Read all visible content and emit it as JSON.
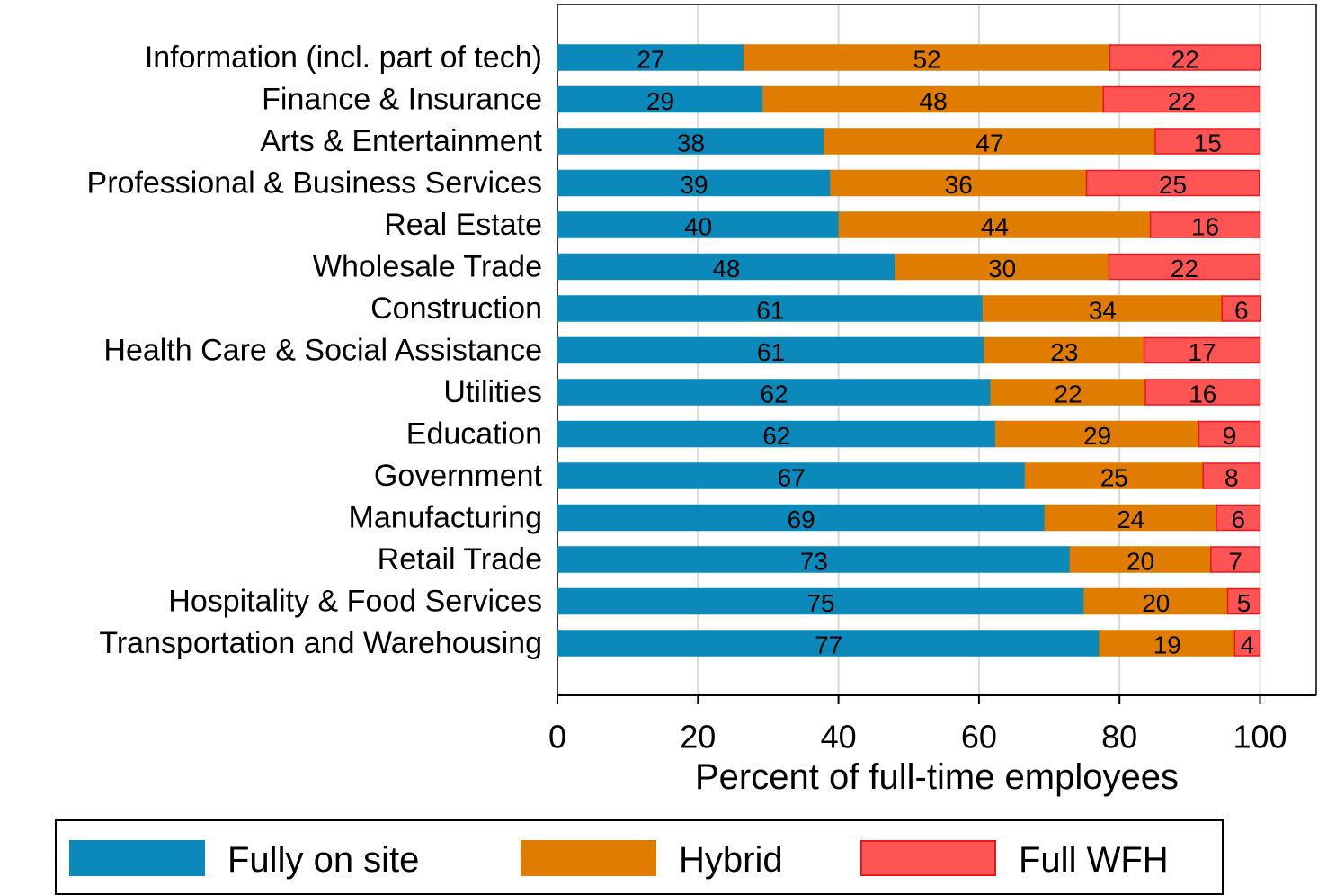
{
  "chart_data": {
    "type": "stacked_barh",
    "categories": [
      "Information (incl. part of tech)",
      "Finance & Insurance",
      "Arts & Entertainment",
      "Professional & Business Services",
      "Real Estate",
      "Wholesale Trade",
      "Construction",
      "Health Care & Social Assistance",
      "Utilities",
      "Education",
      "Government",
      "Manufacturing",
      "Retail Trade",
      "Hospitality & Food Services",
      "Transportation and Warehousing"
    ],
    "series": [
      {
        "name": "Fully on site",
        "color": "#0b89bb",
        "edge": "#0b89bb",
        "values": [
          26.6,
          29.3,
          38.0,
          38.9,
          40.1,
          48.1,
          60.6,
          60.8,
          61.7,
          62.4,
          66.6,
          69.4,
          73.0,
          75.0,
          77.2
        ],
        "value_labels": [
          "27",
          "29",
          "38",
          "39",
          "40",
          "48",
          "61",
          "61",
          "62",
          "62",
          "67",
          "69",
          "73",
          "75",
          "77"
        ]
      },
      {
        "name": "Hybrid",
        "color": "#e07c00",
        "edge": "#e07c00",
        "values": [
          52.0,
          48.4,
          47.1,
          36.4,
          44.3,
          30.4,
          34.0,
          22.7,
          22.0,
          28.9,
          25.3,
          24.4,
          20.0,
          20.4,
          19.2
        ],
        "value_labels": [
          "52",
          "48",
          "47",
          "36",
          "44",
          "30",
          "34",
          "23",
          "22",
          "29",
          "25",
          "24",
          "20",
          "20",
          "19"
        ]
      },
      {
        "name": "Full WFH",
        "color": "#ff5454",
        "edge": "#e8181e",
        "values": [
          21.5,
          22.3,
          14.9,
          24.6,
          15.6,
          21.5,
          5.5,
          16.5,
          16.3,
          8.7,
          8.1,
          6.2,
          7.0,
          4.6,
          3.6
        ],
        "value_labels": [
          "22",
          "22",
          "15",
          "25",
          "16",
          "22",
          "6",
          "17",
          "16",
          "9",
          "8",
          "6",
          "7",
          "5",
          "4"
        ]
      }
    ],
    "xlabel": "Percent of full-time employees",
    "xlim": [
      0,
      108
    ],
    "xticks": [
      0,
      20,
      40,
      60,
      80,
      100
    ],
    "grid": true,
    "legend": "bottom"
  }
}
